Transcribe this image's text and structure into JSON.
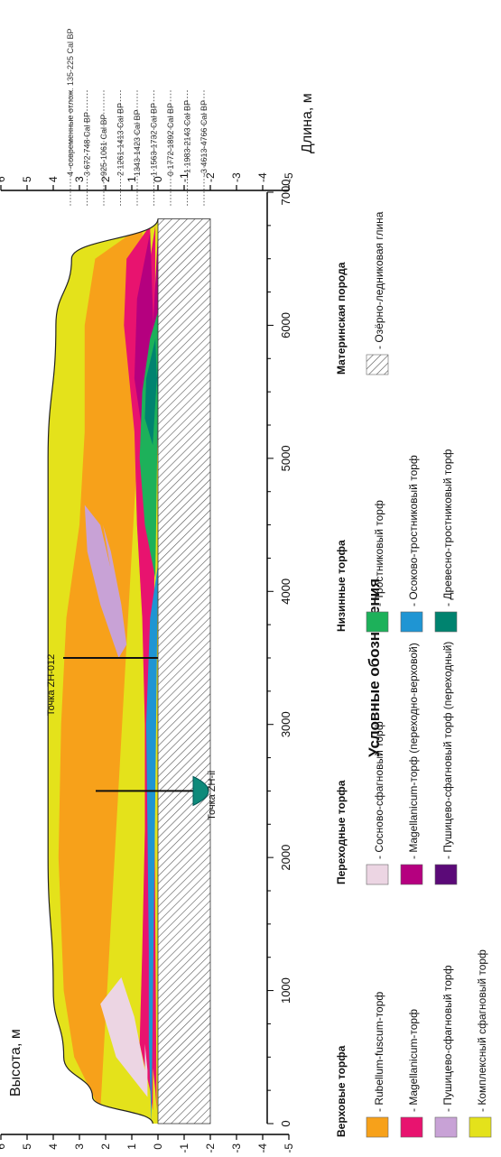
{
  "chart_data": {
    "type": "area",
    "title": "",
    "xlabel": "Длина, м",
    "ylabel": "Высота, м",
    "xlim": [
      0,
      7000
    ],
    "ylim": [
      -5,
      6
    ],
    "x_ticks": [
      "0",
      "1000",
      "2000",
      "3000",
      "4000",
      "5000",
      "6000",
      "7000"
    ],
    "y_ticks": [
      "-5",
      "-4",
      "-3",
      "-2",
      "-1",
      "0",
      "1",
      "2",
      "3",
      "4",
      "5",
      "6"
    ],
    "surface_profile": {
      "x": [
        0,
        200,
        500,
        1000,
        2000,
        3000,
        4000,
        5000,
        6000,
        6500,
        6800
      ],
      "y": [
        0.2,
        2.5,
        3.6,
        4.0,
        4.2,
        4.2,
        4.2,
        4.2,
        3.9,
        3.3,
        0.0
      ]
    },
    "base_profile": {
      "x": [
        0,
        1000,
        2000,
        3000,
        4000,
        5000,
        6000,
        6800
      ],
      "y": [
        0,
        0,
        0,
        0,
        0,
        0,
        0,
        0
      ]
    },
    "clay_bottom": -2,
    "cores": [
      {
        "label": "Точка ZH-ii",
        "x": 2500
      },
      {
        "label": "Точка ZH-012",
        "x": 3500
      }
    ],
    "dating_labels": [
      {
        "tick": "4",
        "text": "-современные отлож.",
        "age": "135-225",
        "unit": "Cal BP"
      },
      {
        "tick": "3",
        "text": "",
        "age": "672-748",
        "unit": "Cal BP"
      },
      {
        "tick": "",
        "text": "",
        "age": "925-1061",
        "unit": "Cal BP"
      },
      {
        "tick": "2",
        "text": "",
        "age": "1261-1413",
        "unit": "Cal BP"
      },
      {
        "tick": "",
        "text": "",
        "age": "1343-1423",
        "unit": "Cal BP"
      },
      {
        "tick": "1",
        "text": "",
        "age": "1563-1732",
        "unit": "Cal BP"
      },
      {
        "tick": "0",
        "text": "",
        "age": "1772-1892",
        "unit": "Cal BP"
      },
      {
        "tick": "-1",
        "text": "",
        "age": "1983-2143",
        "unit": "Cal BP"
      },
      {
        "tick": "-3",
        "text": "",
        "age": "4613-4766",
        "unit": "Cal BP"
      }
    ],
    "right_axis_ticks": [
      "6",
      "5",
      "4",
      "3",
      "2",
      "1",
      "0",
      "-1",
      "-2",
      "-3",
      "-4",
      "-5"
    ]
  },
  "legend": {
    "title": "Условные обозначения",
    "groups": [
      {
        "name": "Верховые торфа",
        "items": [
          {
            "label": "- Rubellum-fuscum-торф",
            "color": "#f7a11a"
          },
          {
            "label": "- Magellanicum-торф",
            "color": "#e8136f"
          },
          {
            "label": "- Пушицево-сфагновый торф",
            "color": "#c8a2d6"
          },
          {
            "label": "- Комплексный сфагновый торф",
            "color": "#e4e21b"
          }
        ]
      },
      {
        "name": "Переходные торфа",
        "items": [
          {
            "label": "- Сосново-сфагновый торф",
            "color": "#ecd5e3"
          },
          {
            "label": "- Magellanicum-торф (переходно-верховой)",
            "color": "#b5007f"
          },
          {
            "label": "- Пушицево-сфагновый торф (переходный)",
            "color": "#5b0a78"
          }
        ]
      },
      {
        "name": "Низинные торфа",
        "items": [
          {
            "label": "- Тростниковый торф",
            "color": "#1db15a"
          },
          {
            "label": "- Осоково-тростниковый торф",
            "color": "#1f95d3"
          },
          {
            "label": "- Древесно-тростниковый торф",
            "color": "#00836f"
          }
        ]
      },
      {
        "name": "Материнская порода",
        "items": [
          {
            "label": "- Озёрно-ледниковая глина",
            "color": "#ffffff"
          }
        ]
      }
    ]
  }
}
